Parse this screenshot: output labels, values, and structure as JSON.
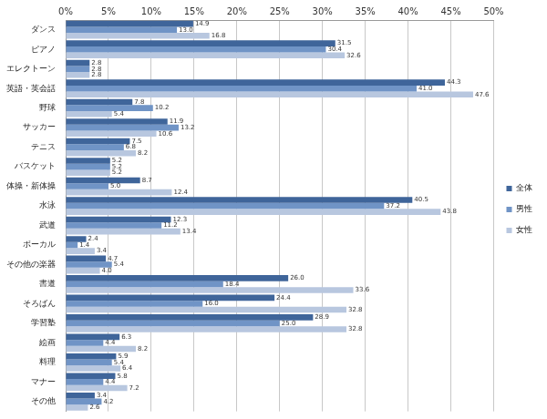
{
  "chart_data": {
    "type": "bar",
    "orientation": "horizontal",
    "categories": [
      "ダンス",
      "ピアノ",
      "エレクトーン",
      "英語・英会話",
      "野球",
      "サッカー",
      "テニス",
      "バスケット",
      "体操・新体操",
      "水泳",
      "武道",
      "ボーカル",
      "その他の楽器",
      "書道",
      "そろばん",
      "学習塾",
      "絵画",
      "料理",
      "マナー",
      "その他"
    ],
    "series": [
      {
        "name": "全体",
        "color": "#3f659a",
        "values": [
          14.9,
          31.5,
          2.8,
          44.3,
          7.8,
          11.9,
          7.5,
          5.2,
          8.7,
          40.5,
          12.3,
          2.4,
          4.7,
          26.0,
          24.4,
          28.9,
          6.3,
          5.9,
          5.8,
          3.4
        ],
        "value_labels": [
          "14.9",
          "31.5",
          "2.8",
          "44.3",
          "7.8",
          "11.9",
          "7.5",
          "5.2",
          "8.7",
          "40.5",
          "12.3",
          "2.4",
          "4.7",
          "26.0",
          "24.4",
          "28.9",
          "6.3",
          "5.9",
          "5.8",
          "3.4"
        ]
      },
      {
        "name": "男性",
        "color": "#7094c6",
        "values": [
          13.0,
          30.4,
          2.8,
          41.0,
          10.2,
          13.2,
          6.8,
          5.2,
          5.0,
          37.2,
          11.2,
          1.4,
          5.4,
          18.4,
          16.0,
          25.0,
          4.4,
          5.4,
          4.4,
          4.2
        ],
        "value_labels": [
          "13.0",
          "30.4",
          "2.8",
          "41.0",
          "10.2",
          "13.2",
          "6.8",
          "5.2",
          "5.0",
          "37.2",
          "11.2",
          "1.4",
          "5.4",
          "18.4",
          "16.0",
          "25.0",
          "4.4",
          "5.4",
          "4.4",
          "4.2"
        ]
      },
      {
        "name": "女性",
        "color": "#b8c7df",
        "values": [
          16.8,
          32.6,
          2.8,
          47.6,
          5.4,
          10.6,
          8.2,
          5.2,
          12.4,
          43.8,
          13.4,
          3.4,
          4.0,
          33.6,
          32.8,
          32.8,
          8.2,
          6.4,
          7.2,
          2.6
        ],
        "value_labels": [
          "16.8",
          "32.6",
          "2.8",
          "47.6",
          "5.4",
          "10.6",
          "8.2",
          "5.2",
          "12.4",
          "43.8",
          "13.4",
          "3.4",
          "4.0",
          "33.6",
          "32.8",
          "32.8",
          "8.2",
          "6.4",
          "7.2",
          "2.6"
        ]
      }
    ],
    "xlim": [
      0,
      50
    ],
    "xticks": [
      {
        "value": 0,
        "label": "0%"
      },
      {
        "value": 5,
        "label": "5%"
      },
      {
        "value": 10,
        "label": "10%"
      },
      {
        "value": 15,
        "label": "15%"
      },
      {
        "value": 20,
        "label": "20%"
      },
      {
        "value": 25,
        "label": "25%"
      },
      {
        "value": 30,
        "label": "30%"
      },
      {
        "value": 35,
        "label": "35%"
      },
      {
        "value": 40,
        "label": "40%"
      },
      {
        "value": 45,
        "label": "45%"
      },
      {
        "value": 50,
        "label": "50%"
      }
    ],
    "grid": true,
    "legend": "right",
    "data_labels": true
  }
}
